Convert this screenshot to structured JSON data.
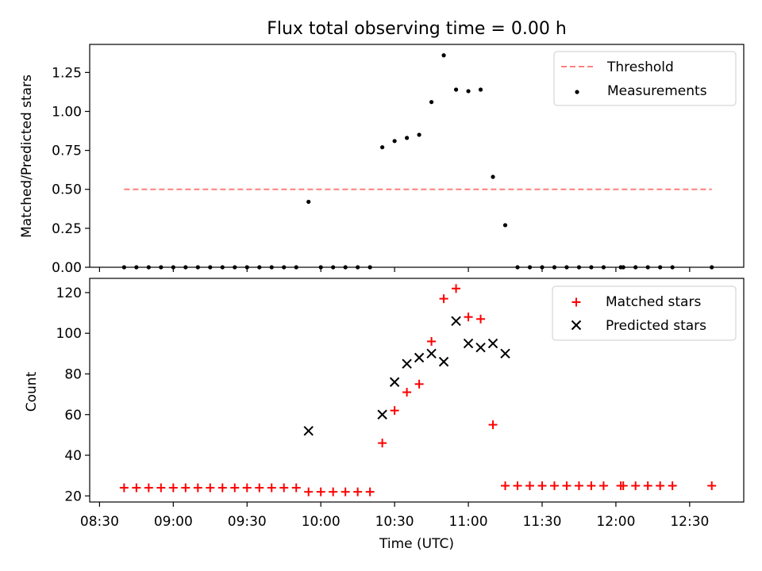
{
  "chart_data": [
    {
      "type": "scatter",
      "title": "Flux total observing time = 0.00 h",
      "ylabel": "Matched/Predicted stars",
      "ylim": [
        0,
        1.43
      ],
      "yticks": [
        0.0,
        0.25,
        0.5,
        0.75,
        1.0,
        1.25
      ],
      "ytick_labels": [
        "0.00",
        "0.25",
        "0.50",
        "0.75",
        "1.00",
        "1.25"
      ],
      "legend_position": "top-right",
      "threshold": {
        "name": "Threshold",
        "value": 0.5,
        "x_start": "08:40",
        "x_end": "12:39",
        "color": "#ff7f7f"
      },
      "series": [
        {
          "name": "Measurements",
          "color": "#000000",
          "x": [
            "08:40",
            "08:45",
            "08:50",
            "08:55",
            "09:00",
            "09:05",
            "09:10",
            "09:15",
            "09:20",
            "09:25",
            "09:30",
            "09:35",
            "09:40",
            "09:45",
            "09:50",
            "09:55",
            "10:00",
            "10:05",
            "10:10",
            "10:15",
            "10:20",
            "10:25",
            "10:30",
            "10:35",
            "10:40",
            "10:45",
            "10:50",
            "10:55",
            "11:00",
            "11:05",
            "11:10",
            "11:15",
            "11:20",
            "11:25",
            "11:30",
            "11:35",
            "11:40",
            "11:45",
            "11:50",
            "11:55",
            "12:02",
            "12:03",
            "12:08",
            "12:13",
            "12:18",
            "12:23",
            "12:39"
          ],
          "values": [
            0,
            0,
            0,
            0,
            0,
            0,
            0,
            0,
            0,
            0,
            0,
            0,
            0,
            0,
            0,
            0.42,
            0,
            0,
            0,
            0,
            0,
            0.77,
            0.81,
            0.83,
            0.85,
            1.06,
            1.36,
            1.14,
            1.13,
            1.14,
            0.58,
            0.27,
            0,
            0,
            0,
            0,
            0,
            0,
            0,
            0,
            0,
            0,
            0,
            0,
            0,
            0,
            0
          ]
        }
      ]
    },
    {
      "type": "scatter",
      "xlabel": "Time (UTC)",
      "ylabel": "Count",
      "ylim": [
        17,
        127
      ],
      "yticks": [
        20,
        40,
        60,
        80,
        100,
        120
      ],
      "ytick_labels": [
        "20",
        "40",
        "60",
        "80",
        "100",
        "120"
      ],
      "xticks": [
        "08:30",
        "09:00",
        "09:30",
        "10:00",
        "10:30",
        "11:00",
        "11:30",
        "12:00",
        "12:30"
      ],
      "xlim": [
        "08:26",
        "12:52"
      ],
      "legend_position": "top-right",
      "series": [
        {
          "name": "Matched stars",
          "marker": "plus",
          "color": "#ff0000",
          "x": [
            "08:40",
            "08:45",
            "08:50",
            "08:55",
            "09:00",
            "09:05",
            "09:10",
            "09:15",
            "09:20",
            "09:25",
            "09:30",
            "09:35",
            "09:40",
            "09:45",
            "09:50",
            "09:55",
            "10:00",
            "10:05",
            "10:10",
            "10:15",
            "10:20",
            "10:25",
            "10:30",
            "10:35",
            "10:40",
            "10:45",
            "10:50",
            "10:55",
            "11:00",
            "11:05",
            "11:10",
            "11:15",
            "11:20",
            "11:25",
            "11:30",
            "11:35",
            "11:40",
            "11:45",
            "11:50",
            "11:55",
            "12:02",
            "12:03",
            "12:08",
            "12:13",
            "12:18",
            "12:23",
            "12:39"
          ],
          "values": [
            24,
            24,
            24,
            24,
            24,
            24,
            24,
            24,
            24,
            24,
            24,
            24,
            24,
            24,
            24,
            22,
            22,
            22,
            22,
            22,
            22,
            46,
            62,
            71,
            75,
            96,
            117,
            122,
            108,
            107,
            55,
            25,
            25,
            25,
            25,
            25,
            25,
            25,
            25,
            25,
            25,
            25,
            25,
            25,
            25,
            25,
            25
          ]
        },
        {
          "name": "Predicted stars",
          "marker": "x",
          "color": "#000000",
          "x": [
            "09:55",
            "10:25",
            "10:30",
            "10:35",
            "10:40",
            "10:45",
            "10:50",
            "10:55",
            "11:00",
            "11:05",
            "11:10",
            "11:15"
          ],
          "values": [
            52,
            60,
            76,
            85,
            88,
            90,
            86,
            106,
            95,
            93,
            95,
            90
          ]
        }
      ]
    }
  ]
}
